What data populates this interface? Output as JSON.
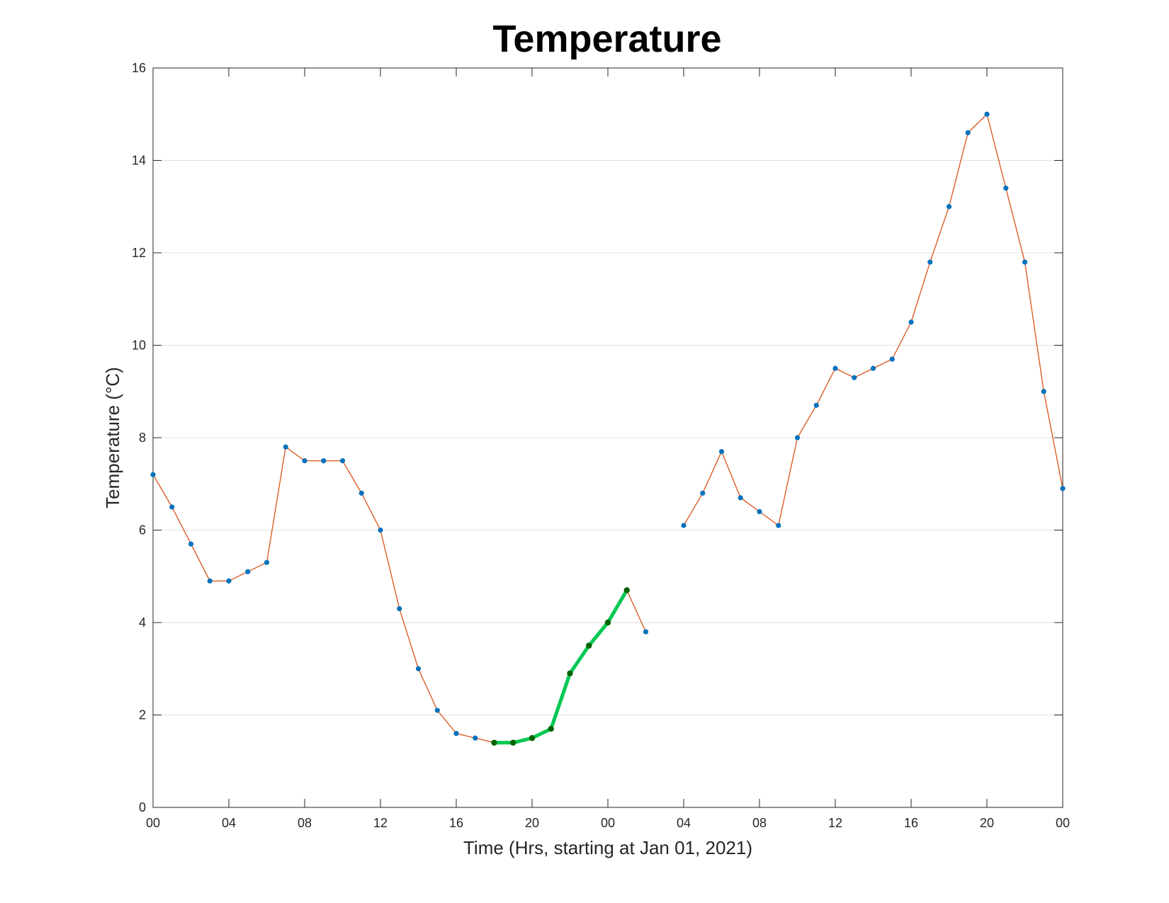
{
  "chart_data": {
    "type": "line",
    "title": "Temperature",
    "xlabel": "Time (Hrs, starting at Jan 01, 2021)",
    "ylabel": "Temperature (°C)",
    "ylim": [
      0,
      16
    ],
    "yticks": [
      0,
      2,
      4,
      6,
      8,
      10,
      12,
      14,
      16
    ],
    "x_unit": "hours",
    "xlim": [
      0,
      48
    ],
    "xticks": [
      0,
      4,
      8,
      12,
      16,
      20,
      24,
      28,
      32,
      36,
      40,
      44,
      48
    ],
    "xtick_labels": [
      "00",
      "04",
      "08",
      "12",
      "16",
      "20",
      "00",
      "04",
      "08",
      "12",
      "16",
      "20",
      "00"
    ],
    "grid": "horizontal",
    "colors": {
      "series_line": "#d95319",
      "series_marker": "#0072bd",
      "highlight_line": "#00c853",
      "highlight_marker": "#006400"
    },
    "series": [
      {
        "x": [
          0,
          1,
          2,
          3,
          4,
          5,
          6,
          7,
          8,
          9,
          10,
          11,
          12,
          13,
          14,
          15,
          16,
          17,
          18,
          19,
          20,
          21,
          22,
          23,
          24,
          25,
          26,
          27,
          28,
          29,
          30,
          31,
          32,
          33,
          34,
          35,
          36,
          37,
          38,
          39,
          40,
          41,
          42,
          43,
          44,
          45,
          46,
          47,
          48
        ],
        "values": [
          7.2,
          6.5,
          5.7,
          4.9,
          4.9,
          5.1,
          5.3,
          7.8,
          7.5,
          7.5,
          7.5,
          6.8,
          6.0,
          4.3,
          3.0,
          2.1,
          1.6,
          1.5,
          1.4,
          1.4,
          1.5,
          1.7,
          2.9,
          3.5,
          4.0,
          4.7,
          3.8,
          null,
          6.1,
          6.8,
          7.7,
          6.7,
          6.4,
          6.1,
          8.0,
          8.7,
          9.5,
          9.3,
          9.5,
          9.7,
          10.5,
          11.8,
          13.0,
          14.6,
          15.0,
          13.4,
          11.8,
          9.0,
          6.9
        ]
      },
      {
        "highlight": true,
        "x": [
          18,
          19,
          20,
          21,
          22,
          23,
          24,
          25
        ],
        "values": [
          1.4,
          1.4,
          1.5,
          1.7,
          2.9,
          3.5,
          4.0,
          4.7
        ]
      }
    ]
  }
}
